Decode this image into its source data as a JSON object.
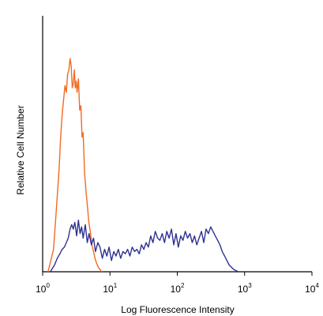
{
  "chart_data": {
    "type": "line",
    "title": "",
    "xlabel": "Log Fluorescence Intensity",
    "ylabel": "Relative Cell Number",
    "xscale": "log",
    "xlim": [
      1,
      10000
    ],
    "ylim": [
      0,
      100
    ],
    "grid": false,
    "legend": "none",
    "xticks": [
      {
        "base": "10",
        "exp": "0",
        "value": 1
      },
      {
        "base": "10",
        "exp": "1",
        "value": 10
      },
      {
        "base": "10",
        "exp": "2",
        "value": 100
      },
      {
        "base": "10",
        "exp": "3",
        "value": 1000
      },
      {
        "base": "10",
        "exp": "4",
        "value": 10000
      }
    ],
    "series": [
      {
        "color": "#f26b21",
        "x": [
          1.2,
          1.45,
          1.6,
          1.75,
          1.85,
          1.95,
          2.05,
          2.15,
          2.25,
          2.35,
          2.45,
          2.55,
          2.65,
          2.75,
          2.85,
          2.95,
          3.05,
          3.15,
          3.25,
          3.4,
          3.55,
          3.7,
          3.85,
          4.0,
          4.2,
          4.4,
          4.6,
          4.85,
          5.1,
          5.4,
          5.7,
          6.0,
          6.3,
          6.7,
          7.1,
          7.5
        ],
        "y": [
          0,
          10,
          28,
          45,
          60,
          70,
          77,
          83,
          80,
          88,
          90,
          95,
          92,
          82,
          84,
          90,
          82,
          85,
          80,
          86,
          72,
          74,
          60,
          62,
          44,
          36,
          30,
          22,
          18,
          12,
          9,
          6,
          4,
          2,
          1,
          0
        ]
      },
      {
        "color": "#2e3192",
        "x": [
          1.3,
          1.5,
          1.65,
          1.8,
          1.95,
          2.1,
          2.25,
          2.4,
          2.55,
          2.7,
          2.85,
          3.0,
          3.2,
          3.4,
          3.6,
          3.8,
          4.0,
          4.3,
          4.6,
          4.9,
          5.3,
          5.7,
          6.1,
          6.6,
          7.1,
          7.7,
          8.3,
          9.0,
          9.7,
          10.5,
          11.4,
          12.3,
          13.3,
          14.4,
          15.6,
          16.9,
          18.3,
          19.8,
          21.4,
          23.2,
          25.1,
          27.2,
          29.4,
          31.8,
          34.4,
          37.2,
          40.2,
          43.5,
          47.1,
          51.0,
          55.2,
          59.7,
          64.6,
          69.9,
          75.6,
          81.8,
          88.5,
          95.8,
          103.7,
          112.2,
          121.4,
          131.4,
          142.2,
          153.9,
          166.5,
          180.2,
          195.0,
          211.0,
          228.4,
          247.2,
          267.5,
          289.5,
          313.3,
          339.1,
          367.0,
          397.2,
          429.9,
          465.3,
          503.6,
          545.0,
          589.9,
          638.4,
          691.0,
          747.8,
          809.3
        ],
        "y": [
          0,
          3,
          6,
          8,
          10,
          11,
          13,
          15,
          19,
          21,
          19,
          22,
          16,
          23,
          17,
          20,
          15,
          21,
          13,
          17,
          12,
          15,
          9,
          13,
          11,
          6,
          10,
          7,
          11,
          5,
          9,
          7,
          10,
          6,
          9,
          8,
          10,
          7,
          11,
          9,
          10,
          8,
          12,
          10,
          13,
          11,
          16,
          13,
          18,
          15,
          14,
          17,
          13,
          18,
          15,
          19,
          12,
          17,
          11,
          16,
          14,
          18,
          15,
          17,
          13,
          16,
          12,
          15,
          18,
          13,
          19,
          17,
          20,
          18,
          16,
          14,
          12,
          9,
          7,
          5,
          3,
          2,
          1,
          0.5,
          0
        ]
      }
    ]
  }
}
